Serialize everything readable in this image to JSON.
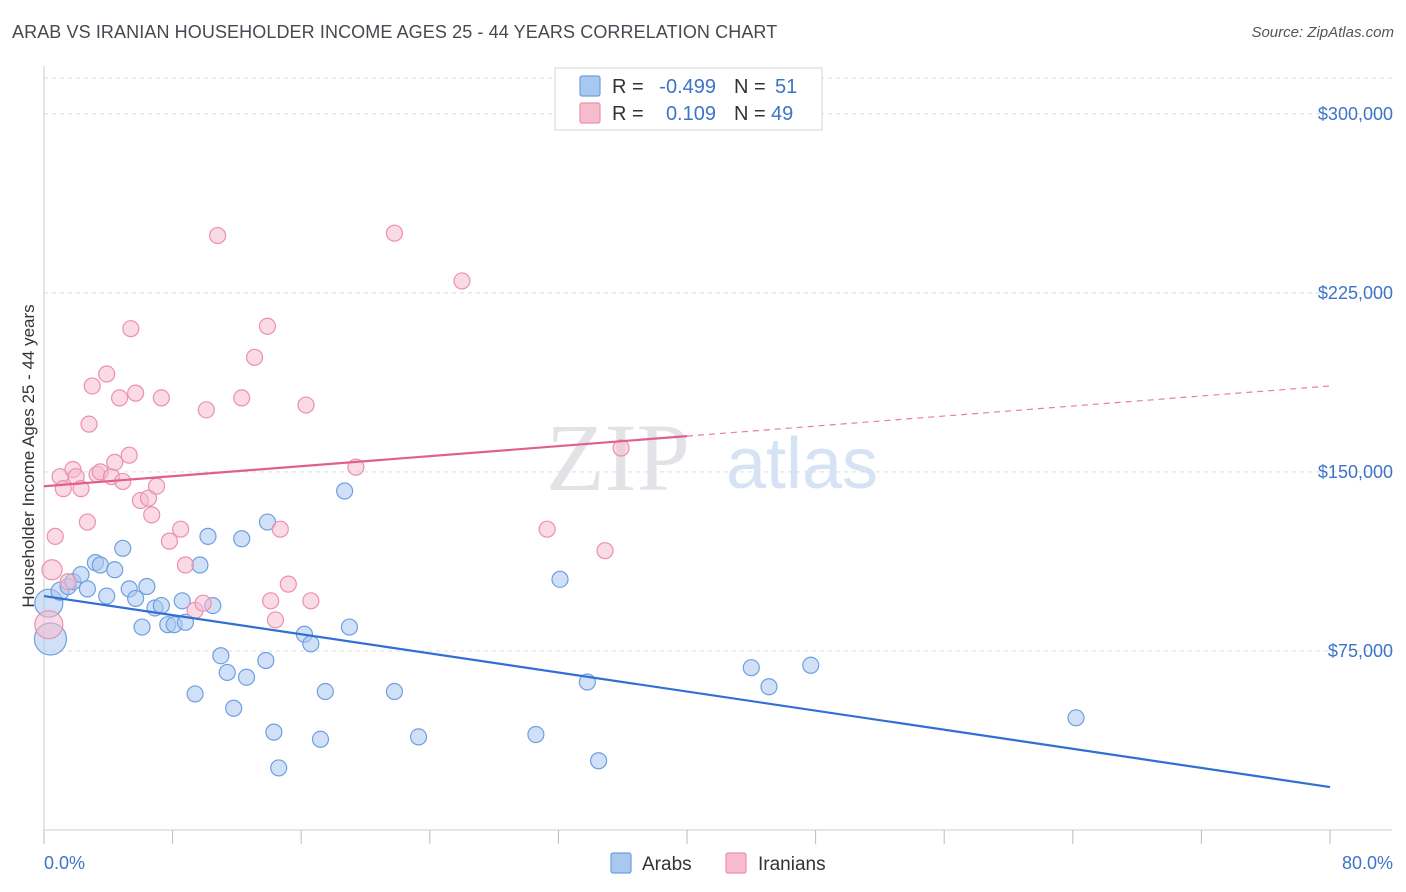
{
  "title": "ARAB VS IRANIAN HOUSEHOLDER INCOME AGES 25 - 44 YEARS CORRELATION CHART",
  "source": "Source: ZipAtlas.com",
  "watermark": {
    "zip": "ZIP",
    "atlas": "atlas"
  },
  "legend_top": {
    "rows": [
      {
        "r_label": "R =",
        "r_value": "-0.499",
        "n_label": "N =",
        "n_value": "51"
      },
      {
        "r_label": "R =",
        "r_value": "0.109",
        "n_label": "N =",
        "n_value": "49"
      }
    ]
  },
  "colors": {
    "arabs_fill": "#a9c8f0",
    "arabs_stroke": "#6f9fe0",
    "arabs_line": "#2f6fd6",
    "iranians_fill": "#f6bccd",
    "iranians_stroke": "#ec90ad",
    "iranians_line": "#e0608a",
    "tick": "#3d74c9",
    "grid": "#dddddd"
  },
  "chart_data": {
    "type": "scatter",
    "title": "ARAB VS IRANIAN HOUSEHOLDER INCOME AGES 25 - 44 YEARS CORRELATION CHART",
    "xlabel": "",
    "ylabel": "Householder Income Ages 25 - 44 years",
    "xlim": [
      0,
      80
    ],
    "ylim": [
      0,
      315000
    ],
    "x_tick_labels": [
      "0.0%",
      "80.0%"
    ],
    "y_ticks": [
      75000,
      150000,
      225000,
      300000
    ],
    "y_tick_labels": [
      "$75,000",
      "$150,000",
      "$225,000",
      "$300,000"
    ],
    "grid": true,
    "legend": "bottom-center",
    "series": [
      {
        "name": "Arabs",
        "R": -0.499,
        "N": 51,
        "trend": {
          "x": [
            0,
            80
          ],
          "y": [
            98000,
            18000
          ]
        },
        "points": [
          {
            "x": 0.3,
            "y": 95000,
            "s": 14
          },
          {
            "x": 0.4,
            "y": 80000,
            "s": 16
          },
          {
            "x": 1.0,
            "y": 100000,
            "s": 9
          },
          {
            "x": 1.5,
            "y": 102000,
            "s": 8
          },
          {
            "x": 1.8,
            "y": 104000,
            "s": 8
          },
          {
            "x": 2.3,
            "y": 107000,
            "s": 8
          },
          {
            "x": 2.7,
            "y": 101000,
            "s": 8
          },
          {
            "x": 3.2,
            "y": 112000,
            "s": 8
          },
          {
            "x": 3.5,
            "y": 111000,
            "s": 8
          },
          {
            "x": 3.9,
            "y": 98000,
            "s": 8
          },
          {
            "x": 4.4,
            "y": 109000,
            "s": 8
          },
          {
            "x": 4.9,
            "y": 118000,
            "s": 8
          },
          {
            "x": 5.3,
            "y": 101000,
            "s": 8
          },
          {
            "x": 5.7,
            "y": 97000,
            "s": 8
          },
          {
            "x": 6.1,
            "y": 85000,
            "s": 8
          },
          {
            "x": 6.4,
            "y": 102000,
            "s": 8
          },
          {
            "x": 6.9,
            "y": 93000,
            "s": 8
          },
          {
            "x": 7.3,
            "y": 94000,
            "s": 8
          },
          {
            "x": 7.7,
            "y": 86000,
            "s": 8
          },
          {
            "x": 8.1,
            "y": 86000,
            "s": 8
          },
          {
            "x": 8.6,
            "y": 96000,
            "s": 8
          },
          {
            "x": 8.8,
            "y": 87000,
            "s": 8
          },
          {
            "x": 9.4,
            "y": 57000,
            "s": 8
          },
          {
            "x": 9.7,
            "y": 111000,
            "s": 8
          },
          {
            "x": 10.2,
            "y": 123000,
            "s": 8
          },
          {
            "x": 10.5,
            "y": 94000,
            "s": 8
          },
          {
            "x": 11.0,
            "y": 73000,
            "s": 8
          },
          {
            "x": 11.4,
            "y": 66000,
            "s": 8
          },
          {
            "x": 11.8,
            "y": 51000,
            "s": 8
          },
          {
            "x": 12.3,
            "y": 122000,
            "s": 8
          },
          {
            "x": 12.6,
            "y": 64000,
            "s": 8
          },
          {
            "x": 13.8,
            "y": 71000,
            "s": 8
          },
          {
            "x": 13.9,
            "y": 129000,
            "s": 8
          },
          {
            "x": 14.3,
            "y": 41000,
            "s": 8
          },
          {
            "x": 14.6,
            "y": 26000,
            "s": 8
          },
          {
            "x": 16.2,
            "y": 82000,
            "s": 8
          },
          {
            "x": 16.6,
            "y": 78000,
            "s": 8
          },
          {
            "x": 17.2,
            "y": 38000,
            "s": 8
          },
          {
            "x": 17.5,
            "y": 58000,
            "s": 8
          },
          {
            "x": 18.7,
            "y": 142000,
            "s": 8
          },
          {
            "x": 19.0,
            "y": 85000,
            "s": 8
          },
          {
            "x": 21.8,
            "y": 58000,
            "s": 8
          },
          {
            "x": 23.3,
            "y": 39000,
            "s": 8
          },
          {
            "x": 30.6,
            "y": 40000,
            "s": 8
          },
          {
            "x": 32.1,
            "y": 105000,
            "s": 8
          },
          {
            "x": 33.8,
            "y": 62000,
            "s": 8
          },
          {
            "x": 34.5,
            "y": 29000,
            "s": 8
          },
          {
            "x": 44.0,
            "y": 68000,
            "s": 8
          },
          {
            "x": 45.1,
            "y": 60000,
            "s": 8
          },
          {
            "x": 47.7,
            "y": 69000,
            "s": 8
          },
          {
            "x": 64.2,
            "y": 47000,
            "s": 8
          }
        ]
      },
      {
        "name": "Iranians",
        "R": 0.109,
        "N": 49,
        "trend": {
          "x": [
            0,
            40,
            80
          ],
          "y": [
            144000,
            165000,
            186000
          ],
          "dashed_from": 40
        },
        "points": [
          {
            "x": 0.3,
            "y": 86000,
            "s": 14
          },
          {
            "x": 0.5,
            "y": 109000,
            "s": 10
          },
          {
            "x": 0.7,
            "y": 123000,
            "s": 8
          },
          {
            "x": 1.0,
            "y": 148000,
            "s": 8
          },
          {
            "x": 1.2,
            "y": 143000,
            "s": 8
          },
          {
            "x": 1.5,
            "y": 104000,
            "s": 8
          },
          {
            "x": 1.8,
            "y": 151000,
            "s": 8
          },
          {
            "x": 2.0,
            "y": 148000,
            "s": 8
          },
          {
            "x": 2.3,
            "y": 143000,
            "s": 8
          },
          {
            "x": 2.7,
            "y": 129000,
            "s": 8
          },
          {
            "x": 2.8,
            "y": 170000,
            "s": 8
          },
          {
            "x": 3.0,
            "y": 186000,
            "s": 8
          },
          {
            "x": 3.3,
            "y": 149000,
            "s": 8
          },
          {
            "x": 3.5,
            "y": 150000,
            "s": 8
          },
          {
            "x": 3.9,
            "y": 191000,
            "s": 8
          },
          {
            "x": 4.2,
            "y": 148000,
            "s": 8
          },
          {
            "x": 4.4,
            "y": 154000,
            "s": 8
          },
          {
            "x": 4.7,
            "y": 181000,
            "s": 8
          },
          {
            "x": 4.9,
            "y": 146000,
            "s": 8
          },
          {
            "x": 5.3,
            "y": 157000,
            "s": 8
          },
          {
            "x": 5.4,
            "y": 210000,
            "s": 8
          },
          {
            "x": 5.7,
            "y": 183000,
            "s": 8
          },
          {
            "x": 6.0,
            "y": 138000,
            "s": 8
          },
          {
            "x": 6.5,
            "y": 139000,
            "s": 8
          },
          {
            "x": 6.7,
            "y": 132000,
            "s": 8
          },
          {
            "x": 7.0,
            "y": 144000,
            "s": 8
          },
          {
            "x": 7.3,
            "y": 181000,
            "s": 8
          },
          {
            "x": 7.8,
            "y": 121000,
            "s": 8
          },
          {
            "x": 8.5,
            "y": 126000,
            "s": 8
          },
          {
            "x": 8.8,
            "y": 111000,
            "s": 8
          },
          {
            "x": 9.4,
            "y": 92000,
            "s": 8
          },
          {
            "x": 9.9,
            "y": 95000,
            "s": 8
          },
          {
            "x": 10.1,
            "y": 176000,
            "s": 8
          },
          {
            "x": 10.8,
            "y": 249000,
            "s": 8
          },
          {
            "x": 12.3,
            "y": 181000,
            "s": 8
          },
          {
            "x": 13.1,
            "y": 198000,
            "s": 8
          },
          {
            "x": 13.9,
            "y": 211000,
            "s": 8
          },
          {
            "x": 14.1,
            "y": 96000,
            "s": 8
          },
          {
            "x": 14.4,
            "y": 88000,
            "s": 8
          },
          {
            "x": 14.7,
            "y": 126000,
            "s": 8
          },
          {
            "x": 15.2,
            "y": 103000,
            "s": 8
          },
          {
            "x": 16.3,
            "y": 178000,
            "s": 8
          },
          {
            "x": 16.6,
            "y": 96000,
            "s": 8
          },
          {
            "x": 19.4,
            "y": 152000,
            "s": 8
          },
          {
            "x": 21.8,
            "y": 250000,
            "s": 8
          },
          {
            "x": 26.0,
            "y": 230000,
            "s": 8
          },
          {
            "x": 31.3,
            "y": 126000,
            "s": 8
          },
          {
            "x": 34.9,
            "y": 117000,
            "s": 8
          },
          {
            "x": 35.9,
            "y": 160000,
            "s": 8
          }
        ]
      }
    ]
  }
}
